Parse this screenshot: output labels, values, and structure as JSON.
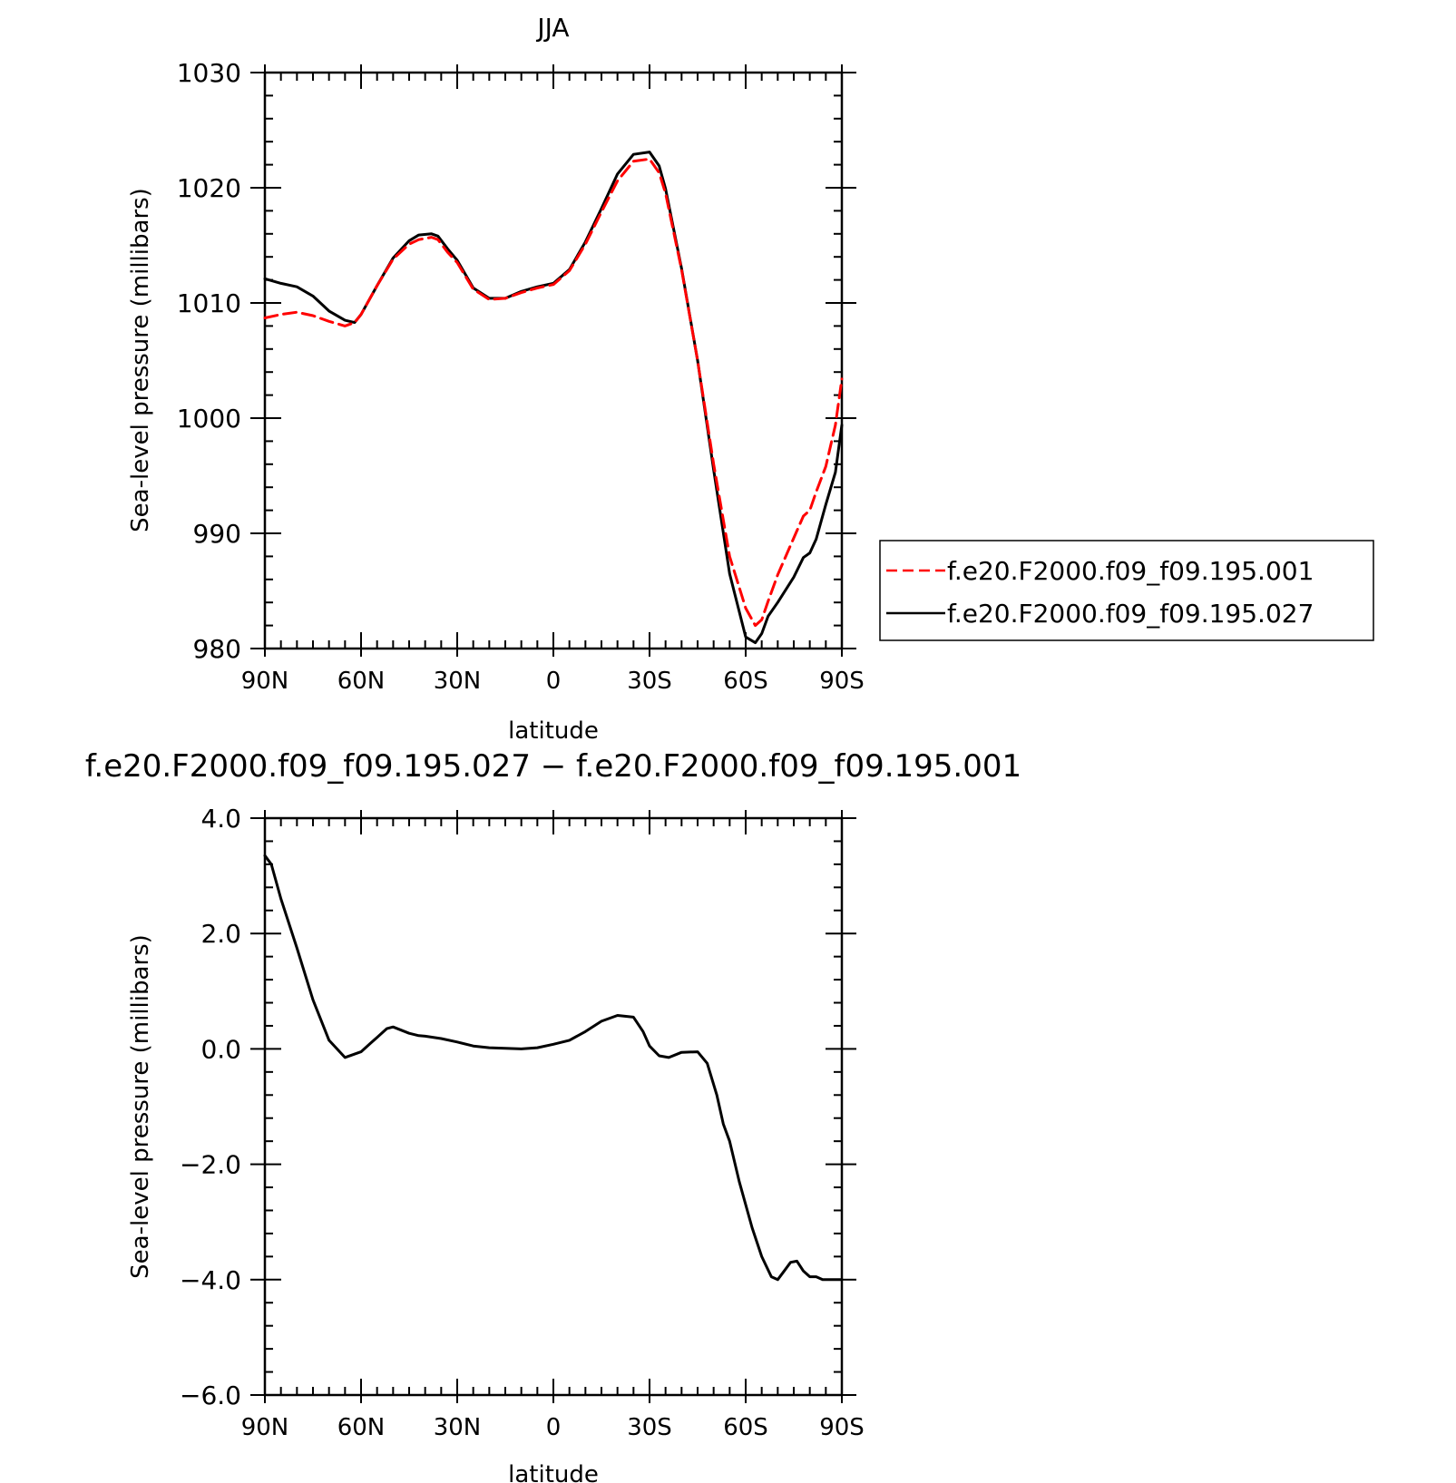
{
  "chart_data": [
    {
      "type": "line",
      "title": "JJA",
      "xlabel": "latitude",
      "ylabel": "Sea-level pressure (millibars)",
      "xlim": [
        90,
        -90
      ],
      "ylim": [
        980,
        1030
      ],
      "xticks": [
        90,
        60,
        30,
        0,
        -30,
        -60,
        -90
      ],
      "xticklabels": [
        "90N",
        "60N",
        "30N",
        "0",
        "30S",
        "60S",
        "90S"
      ],
      "yticks": [
        980,
        990,
        1000,
        1010,
        1020,
        1030
      ],
      "yticklabels": [
        "980",
        "990",
        "1000",
        "1010",
        "1020",
        "1030"
      ],
      "legend_position": "right",
      "series": [
        {
          "name": "f.e20.F2000.f09_f09.195.001",
          "color": "#ff0000",
          "dash": "dashed",
          "x": [
            90,
            85,
            80,
            75,
            70,
            65,
            62,
            60,
            55,
            50,
            45,
            42,
            38,
            36,
            33,
            30,
            25,
            20,
            15,
            10,
            5,
            0,
            -5,
            -10,
            -15,
            -20,
            -25,
            -30,
            -33,
            -35,
            -40,
            -45,
            -50,
            -55,
            -60,
            -63,
            -65,
            -67,
            -70,
            -75,
            -78,
            -80,
            -82,
            -85,
            -88,
            -90
          ],
          "y": [
            1008.7,
            1009.0,
            1009.2,
            1008.9,
            1008.4,
            1008.0,
            1008.3,
            1009.0,
            1011.5,
            1013.8,
            1015.1,
            1015.5,
            1015.7,
            1015.5,
            1014.4,
            1013.5,
            1011.2,
            1010.3,
            1010.4,
            1010.9,
            1011.3,
            1011.6,
            1012.8,
            1015.1,
            1017.9,
            1020.6,
            1022.3,
            1022.5,
            1021.3,
            1019.5,
            1012.9,
            1005.0,
            996.0,
            988.0,
            983.5,
            982.0,
            982.5,
            984.1,
            986.4,
            989.6,
            991.5,
            992.0,
            993.6,
            995.8,
            999.4,
            1003.4
          ]
        },
        {
          "name": "f.e20.F2000.f09_f09.195.027",
          "color": "#000000",
          "dash": "solid",
          "x": [
            90,
            85,
            80,
            75,
            70,
            65,
            62,
            60,
            55,
            50,
            45,
            42,
            38,
            36,
            33,
            30,
            25,
            20,
            15,
            10,
            5,
            0,
            -5,
            -10,
            -15,
            -20,
            -25,
            -30,
            -33,
            -35,
            -40,
            -45,
            -50,
            -55,
            -60,
            -63,
            -65,
            -67,
            -70,
            -75,
            -78,
            -80,
            -82,
            -85,
            -88,
            -90
          ],
          "y": [
            1012.1,
            1011.7,
            1011.4,
            1010.6,
            1009.3,
            1008.5,
            1008.3,
            1009.0,
            1011.5,
            1013.9,
            1015.4,
            1015.9,
            1016.0,
            1015.8,
            1014.7,
            1013.7,
            1011.3,
            1010.4,
            1010.4,
            1011.0,
            1011.4,
            1011.7,
            1012.9,
            1015.3,
            1018.2,
            1021.2,
            1022.9,
            1023.1,
            1021.9,
            1019.9,
            1013.0,
            1005.0,
            995.5,
            986.5,
            981.0,
            980.5,
            981.3,
            982.8,
            984.0,
            986.2,
            987.9,
            988.3,
            989.5,
            992.5,
            995.3,
            999.4
          ]
        }
      ]
    },
    {
      "type": "line",
      "title": "f.e20.F2000.f09_f09.195.027 − f.e20.F2000.f09_f09.195.001",
      "xlabel": "latitude",
      "ylabel": "Sea-level pressure (millibars)",
      "xlim": [
        90,
        -90
      ],
      "ylim": [
        -6,
        4
      ],
      "xticks": [
        90,
        60,
        30,
        0,
        -30,
        -60,
        -90
      ],
      "xticklabels": [
        "90N",
        "60N",
        "30N",
        "0",
        "30S",
        "60S",
        "90S"
      ],
      "yticks": [
        -6,
        -4,
        -2,
        0,
        2,
        4
      ],
      "yticklabels": [
        "−6.0",
        "−4.0",
        "−2.0",
        "0.0",
        "2.0",
        "4.0"
      ],
      "series": [
        {
          "color": "#000000",
          "dash": "solid",
          "x": [
            90,
            88,
            85,
            80,
            75,
            70,
            65,
            60,
            57,
            55,
            52,
            50,
            45,
            42,
            40,
            35,
            30,
            25,
            20,
            15,
            10,
            5,
            0,
            -5,
            -10,
            -15,
            -20,
            -25,
            -28,
            -30,
            -33,
            -36,
            -40,
            -45,
            -48,
            -51,
            -53,
            -55,
            -58,
            -62,
            -65,
            -68,
            -70,
            -72,
            -74,
            -76,
            -78,
            -80,
            -82,
            -84,
            -85,
            -86,
            -88,
            -90
          ],
          "y": [
            3.35,
            3.2,
            2.6,
            1.75,
            0.85,
            0.15,
            -0.15,
            -0.05,
            0.1,
            0.2,
            0.35,
            0.38,
            0.27,
            0.23,
            0.22,
            0.18,
            0.12,
            0.05,
            0.02,
            0.01,
            0.0,
            0.02,
            0.08,
            0.15,
            0.3,
            0.48,
            0.58,
            0.55,
            0.3,
            0.05,
            -0.12,
            -0.15,
            -0.06,
            -0.05,
            -0.25,
            -0.8,
            -1.3,
            -1.6,
            -2.3,
            -3.1,
            -3.6,
            -3.95,
            -4.0,
            -3.85,
            -3.7,
            -3.68,
            -3.85,
            -3.95,
            -3.95,
            -4.0,
            -4.0,
            -4.0,
            -4.0,
            -4.0
          ]
        }
      ]
    }
  ]
}
